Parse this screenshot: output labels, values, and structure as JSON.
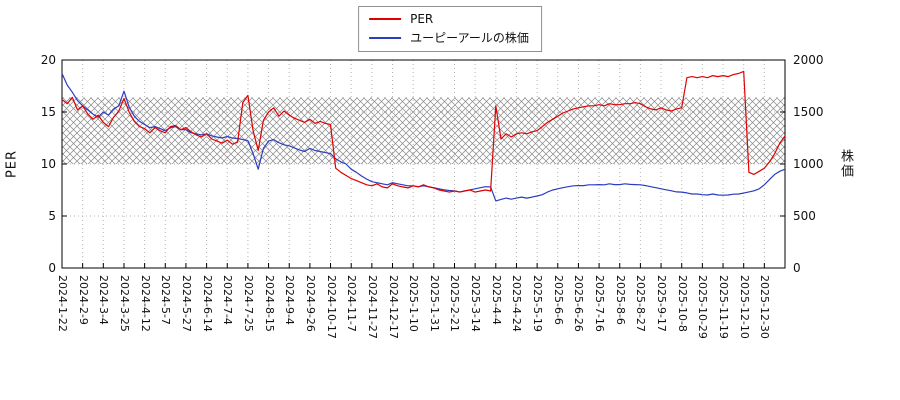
{
  "colors": {
    "per_line": "#e00000",
    "price_line": "#2b3dc0",
    "grid": "#b4b4b4",
    "hatch": "#8a8a8a",
    "axis": "#000000",
    "legend_border": "#909090",
    "background": "#ffffff"
  },
  "chart_data": {
    "type": "line",
    "title": "",
    "legend_position": "top-center",
    "grid": "dotted",
    "points_per_tick": 4,
    "left_axis": {
      "label": "PER",
      "min": 0,
      "max": 20,
      "ticks": [
        0,
        5,
        10,
        15,
        20
      ]
    },
    "right_axis": {
      "label": "株価",
      "min": 0,
      "max": 2000,
      "ticks": [
        0,
        500,
        1000,
        1500,
        2000
      ]
    },
    "band": {
      "axis": "left",
      "from": 10,
      "to": 16.4,
      "style": "crosshatch"
    },
    "x_tick_labels": [
      "2024-1-22",
      "2024-2-9",
      "2024-3-4",
      "2024-3-25",
      "2024-4-12",
      "2024-5-7",
      "2024-5-27",
      "2024-6-14",
      "2024-7-4",
      "2024-7-25",
      "2024-8-15",
      "2024-9-4",
      "2024-9-26",
      "2024-10-17",
      "2024-11-7",
      "2024-11-27",
      "2024-12-17",
      "2025-1-10",
      "2025-1-31",
      "2025-2-21",
      "2025-3-14",
      "2025-4-4",
      "2025-4-24",
      "2025-5-19",
      "2025-6-6",
      "2025-6-26",
      "2025-7-16",
      "2025-8-6",
      "2025-8-27",
      "2025-9-17",
      "2025-10-8",
      "2025-10-29",
      "2025-11-19",
      "2025-12-10",
      "2025-12-30"
    ],
    "series": [
      {
        "name": "PER",
        "axis": "left",
        "color": "#e00000",
        "data_name": "per-line-series",
        "values": [
          16.2,
          15.8,
          16.4,
          15.2,
          15.6,
          14.8,
          14.3,
          14.7,
          14.0,
          13.6,
          14.5,
          15.1,
          16.3,
          15.0,
          14.1,
          13.6,
          13.4,
          13.0,
          13.5,
          13.2,
          13.0,
          13.6,
          13.7,
          13.3,
          13.5,
          13.1,
          12.8,
          12.6,
          12.9,
          12.4,
          12.2,
          12.0,
          12.3,
          11.9,
          12.1,
          15.9,
          16.6,
          13.2,
          11.3,
          14.2,
          15.0,
          15.4,
          14.6,
          15.1,
          14.7,
          14.4,
          14.2,
          14.0,
          14.3,
          13.9,
          14.1,
          13.9,
          13.8,
          9.6,
          9.2,
          8.9,
          8.6,
          8.4,
          8.2,
          8.0,
          7.9,
          8.1,
          7.8,
          7.7,
          8.1,
          7.9,
          7.8,
          7.7,
          7.9,
          7.8,
          8.0,
          7.8,
          7.7,
          7.5,
          7.4,
          7.3,
          7.4,
          7.3,
          7.4,
          7.5,
          7.3,
          7.4,
          7.5,
          7.4,
          15.6,
          12.4,
          12.9,
          12.6,
          12.9,
          13.0,
          12.9,
          13.1,
          13.2,
          13.6,
          14.0,
          14.3,
          14.6,
          14.9,
          15.1,
          15.3,
          15.4,
          15.5,
          15.6,
          15.6,
          15.7,
          15.6,
          15.8,
          15.7,
          15.7,
          15.8,
          15.8,
          15.9,
          15.8,
          15.5,
          15.3,
          15.2,
          15.4,
          15.2,
          15.1,
          15.3,
          15.4,
          18.3,
          18.4,
          18.3,
          18.4,
          18.3,
          18.5,
          18.4,
          18.5,
          18.4,
          18.6,
          18.7,
          18.9,
          9.2,
          9.0,
          9.3,
          9.6,
          10.2,
          11.0,
          12.0,
          12.7
        ]
      },
      {
        "name": "ユーピーアールの株価",
        "axis": "right",
        "color": "#2b3dc0",
        "data_name": "stock-price-line-series",
        "values": [
          1870,
          1760,
          1690,
          1610,
          1560,
          1520,
          1480,
          1450,
          1500,
          1470,
          1530,
          1560,
          1700,
          1550,
          1460,
          1410,
          1380,
          1350,
          1360,
          1340,
          1320,
          1350,
          1360,
          1330,
          1330,
          1300,
          1290,
          1280,
          1290,
          1270,
          1260,
          1250,
          1265,
          1250,
          1245,
          1235,
          1225,
          1100,
          950,
          1150,
          1220,
          1235,
          1205,
          1185,
          1175,
          1155,
          1135,
          1120,
          1150,
          1130,
          1120,
          1110,
          1100,
          1050,
          1020,
          1000,
          950,
          920,
          885,
          855,
          830,
          820,
          810,
          800,
          820,
          810,
          800,
          790,
          790,
          782,
          790,
          782,
          772,
          762,
          752,
          745,
          742,
          732,
          742,
          752,
          762,
          772,
          782,
          780,
          645,
          660,
          672,
          662,
          672,
          682,
          672,
          682,
          692,
          705,
          730,
          750,
          762,
          772,
          782,
          790,
          792,
          792,
          800,
          800,
          802,
          800,
          810,
          802,
          802,
          810,
          804,
          802,
          800,
          792,
          782,
          772,
          762,
          752,
          742,
          732,
          730,
          722,
          712,
          712,
          705,
          702,
          712,
          702,
          700,
          702,
          710,
          712,
          720,
          732,
          742,
          762,
          800,
          850,
          900,
          930,
          950
        ]
      }
    ]
  }
}
